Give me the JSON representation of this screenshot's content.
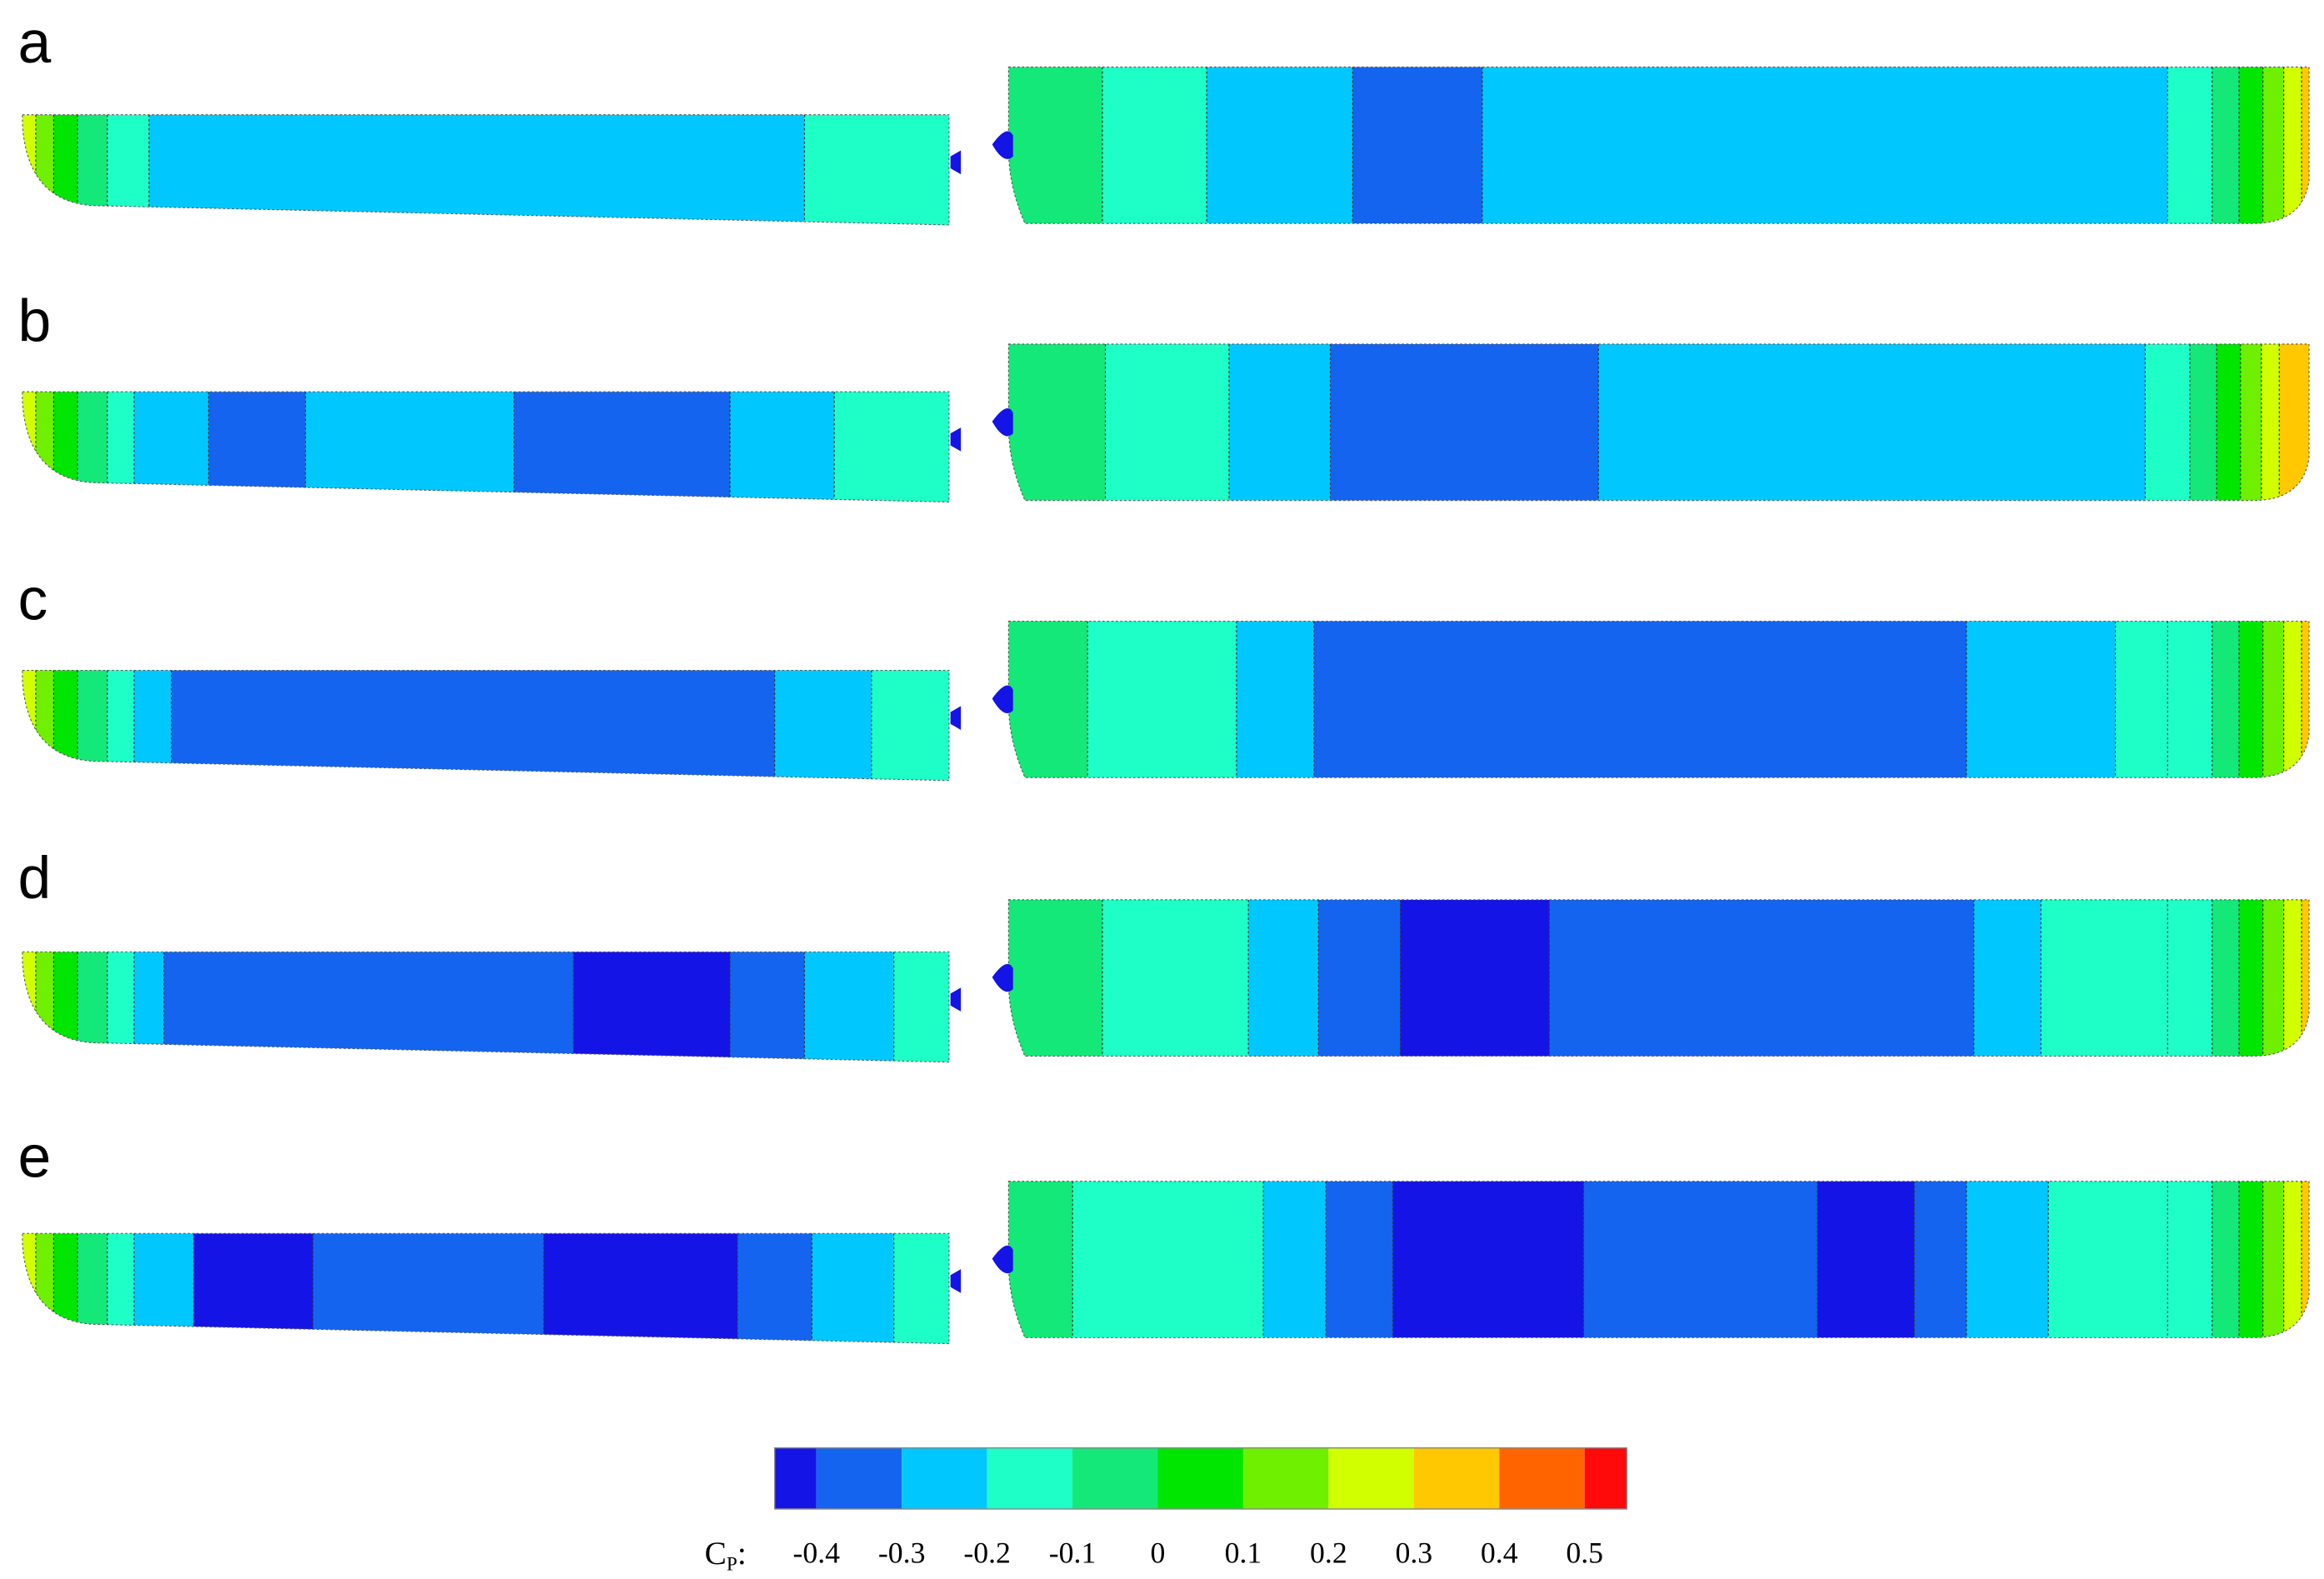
{
  "panels": [
    {
      "label": "a"
    },
    {
      "label": "b"
    },
    {
      "label": "c"
    },
    {
      "label": "d"
    },
    {
      "label": "e"
    }
  ],
  "colorbar": {
    "symbol": "C",
    "subscript": "P",
    "suffix": ":",
    "colors": [
      "#1414e6",
      "#1464f0",
      "#00c8ff",
      "#1effc8",
      "#14e878",
      "#00e600",
      "#6ef000",
      "#d2ff00",
      "#ffc800",
      "#ff6400",
      "#ff0a0a"
    ],
    "ticks": [
      -0.4,
      -0.3,
      -0.2,
      -0.1,
      0,
      0.1,
      0.2,
      0.3,
      0.4,
      0.5
    ]
  }
}
